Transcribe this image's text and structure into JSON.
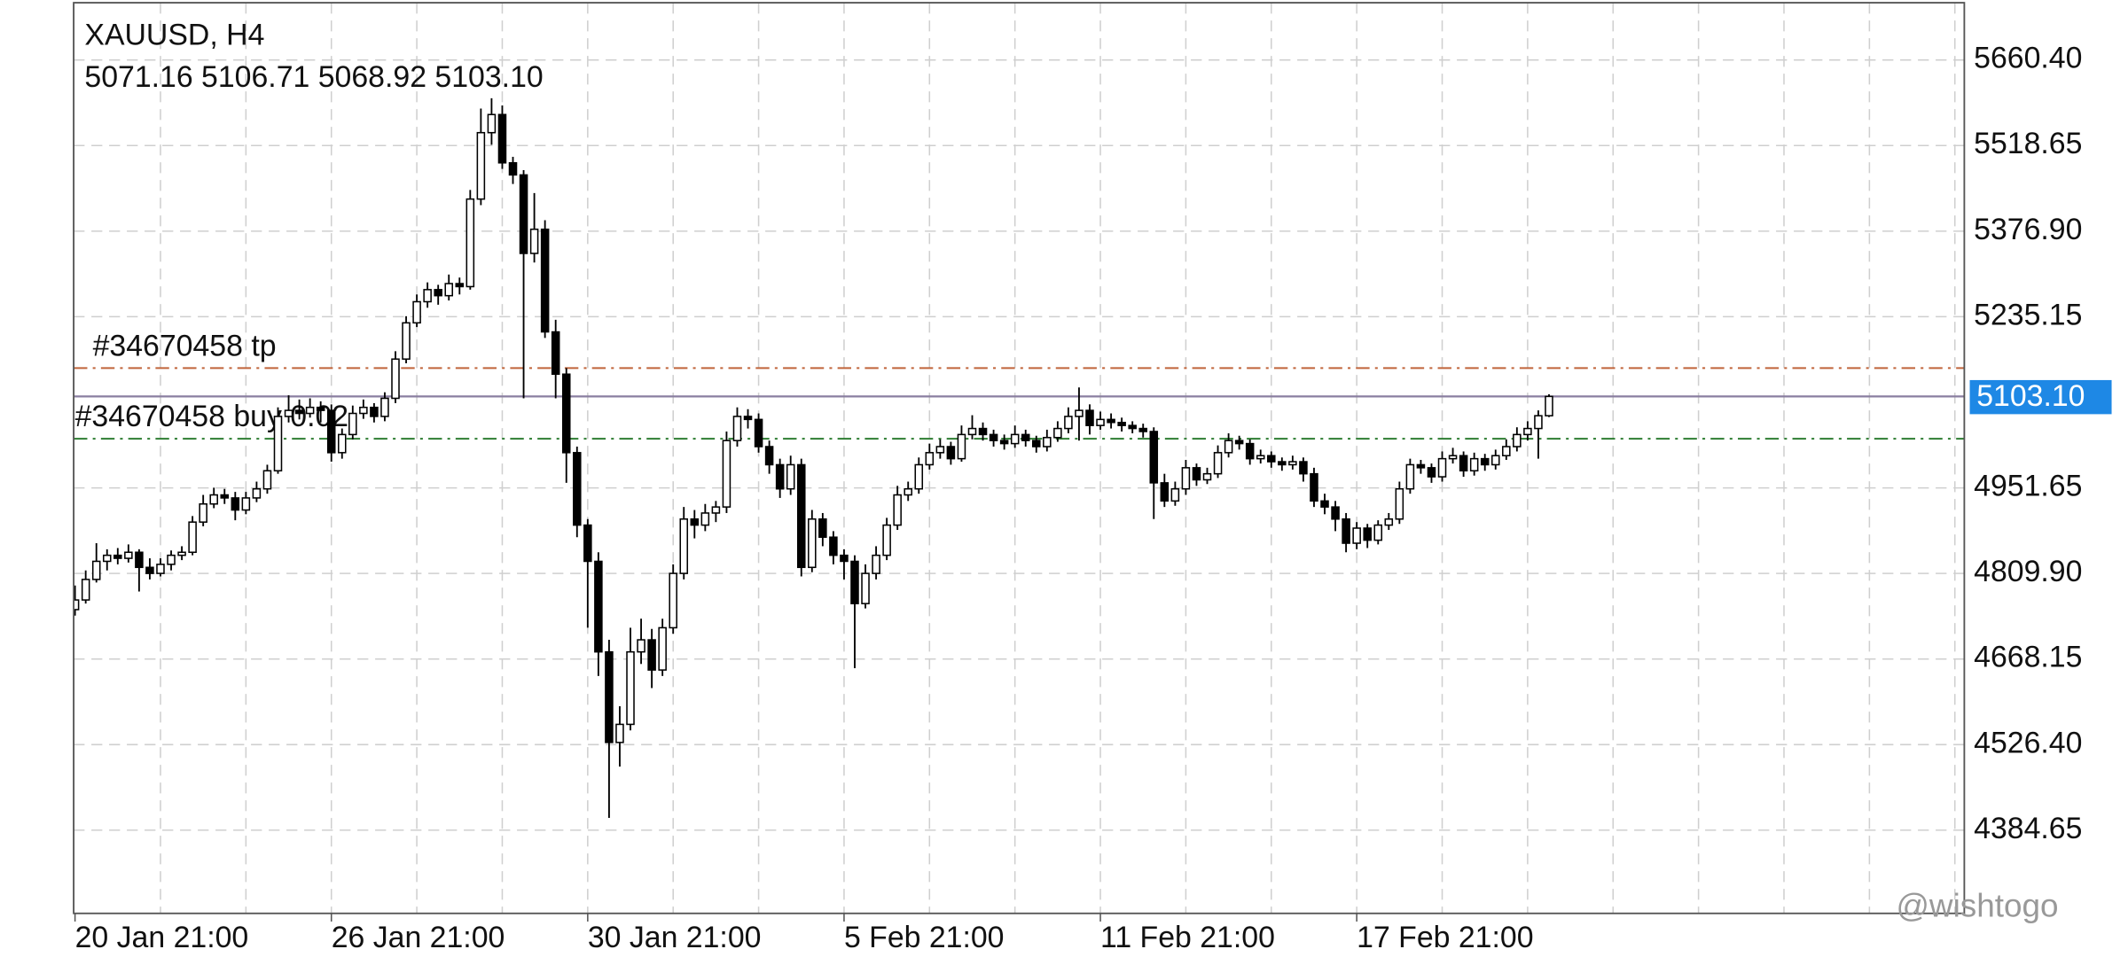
{
  "chart_data": {
    "type": "candlestick",
    "title": "XAUUSD, H4",
    "ohlc_label": "5071.16 5106.71 5068.92 5103.10",
    "watermark": "@wishtogo",
    "ylim": [
      4246.9,
      5755.2
    ],
    "yticks": [
      {
        "value": 5660.4,
        "label": "5660.40"
      },
      5518.65,
      {
        "value": 5376.9,
        "label": "5376.90"
      },
      5235.15,
      4951.65,
      {
        "value": 4809.9,
        "label": "4809.90"
      },
      4668.15,
      {
        "value": 4526.4,
        "label": "4526.40"
      },
      4384.65
    ],
    "grid": true,
    "bull_color": "#ffffff",
    "bear_color": "#000000",
    "outline_color": "#000000",
    "last_price": {
      "value": 5103.1,
      "label": "5103.10",
      "color": "#1e88e5"
    },
    "levels": [
      {
        "label": "#34670458 tp",
        "value": 5150,
        "color": "#c0643a"
      },
      {
        "label": "#34670458 buy 0.02",
        "value": 5033,
        "color": "#2e7d32"
      }
    ],
    "categories": [
      "20 Jan 21:00",
      null,
      null,
      null,
      null,
      null,
      null,
      null,
      null,
      null,
      null,
      null,
      null,
      null,
      null,
      null,
      null,
      null,
      null,
      null,
      null,
      null,
      null,
      null,
      "26 Jan 21:00",
      null,
      null,
      null,
      null,
      null,
      null,
      null,
      null,
      null,
      null,
      null,
      null,
      null,
      null,
      null,
      null,
      null,
      null,
      null,
      null,
      null,
      null,
      null,
      "30 Jan 21:00",
      null,
      null,
      null,
      null,
      null,
      null,
      null,
      null,
      null,
      null,
      null,
      null,
      null,
      null,
      null,
      null,
      null,
      null,
      null,
      null,
      null,
      null,
      null,
      "5 Feb 21:00",
      null,
      null,
      null,
      null,
      null,
      null,
      null,
      null,
      null,
      null,
      null,
      null,
      null,
      null,
      null,
      null,
      null,
      null,
      null,
      null,
      null,
      null,
      null,
      "11 Feb 21:00",
      null,
      null,
      null,
      null,
      null,
      null,
      null,
      null,
      null,
      null,
      null,
      null,
      null,
      null,
      null,
      null,
      null,
      null,
      null,
      null,
      null,
      null,
      null,
      "17 Feb 21:00",
      null,
      null,
      null,
      null,
      null,
      null,
      null,
      null,
      null,
      null,
      null,
      null,
      null,
      null,
      null,
      null,
      null,
      null
    ],
    "candles": [
      [
        4750,
        4790,
        4740,
        4766
      ],
      [
        4766,
        4815,
        4760,
        4800
      ],
      [
        4800,
        4860,
        4795,
        4830
      ],
      [
        4830,
        4850,
        4815,
        4840
      ],
      [
        4840,
        4852,
        4825,
        4835
      ],
      [
        4835,
        4858,
        4828,
        4845
      ],
      [
        4845,
        4850,
        4780,
        4820
      ],
      [
        4820,
        4835,
        4800,
        4810
      ],
      [
        4810,
        4835,
        4805,
        4825
      ],
      [
        4825,
        4848,
        4815,
        4840
      ],
      [
        4840,
        4855,
        4832,
        4845
      ],
      [
        4845,
        4905,
        4840,
        4895
      ],
      [
        4895,
        4940,
        4888,
        4925
      ],
      [
        4925,
        4952,
        4918,
        4940
      ],
      [
        4940,
        4950,
        4925,
        4935
      ],
      [
        4935,
        4945,
        4898,
        4915
      ],
      [
        4915,
        4945,
        4908,
        4935
      ],
      [
        4935,
        4962,
        4928,
        4950
      ],
      [
        4950,
        4990,
        4942,
        4980
      ],
      [
        4980,
        5085,
        4975,
        5070
      ],
      [
        5070,
        5105,
        5060,
        5080
      ],
      [
        5080,
        5098,
        5065,
        5075
      ],
      [
        5075,
        5100,
        5068,
        5085
      ],
      [
        5085,
        5095,
        5060,
        5080
      ],
      [
        5080,
        5090,
        4995,
        5010
      ],
      [
        5010,
        5050,
        5000,
        5040
      ],
      [
        5040,
        5088,
        5032,
        5075
      ],
      [
        5075,
        5098,
        5066,
        5085
      ],
      [
        5085,
        5092,
        5060,
        5070
      ],
      [
        5070,
        5110,
        5062,
        5100
      ],
      [
        5100,
        5178,
        5092,
        5165
      ],
      [
        5165,
        5236,
        5158,
        5225
      ],
      [
        5225,
        5272,
        5218,
        5260
      ],
      [
        5260,
        5292,
        5250,
        5280
      ],
      [
        5280,
        5288,
        5255,
        5270
      ],
      [
        5270,
        5305,
        5262,
        5290
      ],
      [
        5290,
        5300,
        5272,
        5285
      ],
      [
        5285,
        5445,
        5280,
        5430
      ],
      [
        5430,
        5580,
        5420,
        5540
      ],
      [
        5540,
        5597,
        5520,
        5570
      ],
      [
        5570,
        5585,
        5480,
        5490
      ],
      [
        5490,
        5500,
        5455,
        5470
      ],
      [
        5470,
        5478,
        5100,
        5340
      ],
      [
        5340,
        5440,
        5325,
        5380
      ],
      [
        5380,
        5395,
        5200,
        5210
      ],
      [
        5210,
        5230,
        5100,
        5140
      ],
      [
        5140,
        5150,
        4960,
        5010
      ],
      [
        5010,
        5020,
        4870,
        4890
      ],
      [
        4890,
        4900,
        4720,
        4830
      ],
      [
        4830,
        4845,
        4640,
        4680
      ],
      [
        4680,
        4700,
        4405,
        4530
      ],
      [
        4530,
        4590,
        4490,
        4560
      ],
      [
        4560,
        4720,
        4550,
        4680
      ],
      [
        4680,
        4735,
        4660,
        4700
      ],
      [
        4700,
        4718,
        4620,
        4650
      ],
      [
        4650,
        4735,
        4640,
        4720
      ],
      [
        4720,
        4825,
        4710,
        4810
      ],
      [
        4810,
        4920,
        4800,
        4900
      ],
      [
        4900,
        4915,
        4868,
        4890
      ],
      [
        4890,
        4925,
        4880,
        4910
      ],
      [
        4910,
        4930,
        4895,
        4920
      ],
      [
        4920,
        5045,
        4910,
        5030
      ],
      [
        5030,
        5085,
        5020,
        5070
      ],
      [
        5070,
        5082,
        5050,
        5065
      ],
      [
        5065,
        5075,
        5010,
        5020
      ],
      [
        5020,
        5030,
        4975,
        4990
      ],
      [
        4990,
        5000,
        4935,
        4950
      ],
      [
        4950,
        5005,
        4940,
        4990
      ],
      [
        4990,
        5000,
        4805,
        4820
      ],
      [
        4820,
        4915,
        4812,
        4900
      ],
      [
        4900,
        4910,
        4855,
        4870
      ],
      [
        4870,
        4880,
        4825,
        4840
      ],
      [
        4840,
        4850,
        4800,
        4830
      ],
      [
        4830,
        4840,
        4653,
        4760
      ],
      [
        4760,
        4825,
        4752,
        4810
      ],
      [
        4810,
        4855,
        4800,
        4840
      ],
      [
        4840,
        4902,
        4832,
        4890
      ],
      [
        4890,
        4955,
        4882,
        4940
      ],
      [
        4940,
        4962,
        4930,
        4950
      ],
      [
        4950,
        5002,
        4942,
        4990
      ],
      [
        4990,
        5025,
        4982,
        5010
      ],
      [
        5010,
        5032,
        5000,
        5020
      ],
      [
        5020,
        5028,
        4990,
        5000
      ],
      [
        5000,
        5055,
        4995,
        5040
      ],
      [
        5040,
        5072,
        5032,
        5050
      ],
      [
        5050,
        5060,
        5030,
        5040
      ],
      [
        5040,
        5048,
        5020,
        5030
      ],
      [
        5030,
        5040,
        5015,
        5025
      ],
      [
        5025,
        5055,
        5018,
        5040
      ],
      [
        5040,
        5048,
        5020,
        5030
      ],
      [
        5030,
        5038,
        5010,
        5020
      ],
      [
        5020,
        5048,
        5012,
        5035
      ],
      [
        5035,
        5062,
        5028,
        5050
      ],
      [
        5050,
        5085,
        5042,
        5070
      ],
      [
        5070,
        5118,
        5030,
        5080
      ],
      [
        5080,
        5090,
        5040,
        5055
      ],
      [
        5055,
        5078,
        5048,
        5065
      ],
      [
        5065,
        5075,
        5050,
        5060
      ],
      [
        5060,
        5068,
        5045,
        5055
      ],
      [
        5055,
        5062,
        5042,
        5050
      ],
      [
        5050,
        5058,
        5035,
        5045
      ],
      [
        5045,
        5052,
        4900,
        4960
      ],
      [
        4960,
        4975,
        4920,
        4930
      ],
      [
        4930,
        4962,
        4922,
        4950
      ],
      [
        4950,
        4998,
        4940,
        4985
      ],
      [
        4985,
        4992,
        4955,
        4965
      ],
      [
        4965,
        4985,
        4958,
        4975
      ],
      [
        4975,
        5022,
        4968,
        5010
      ],
      [
        5010,
        5042,
        5002,
        5030
      ],
      [
        5030,
        5038,
        5015,
        5025
      ],
      [
        5025,
        5032,
        4990,
        5000
      ],
      [
        5000,
        5015,
        4992,
        5005
      ],
      [
        5005,
        5012,
        4985,
        4995
      ],
      [
        4995,
        5002,
        4980,
        4990
      ],
      [
        4990,
        5005,
        4982,
        4995
      ],
      [
        4995,
        5002,
        4962,
        4975
      ],
      [
        4975,
        4985,
        4920,
        4930
      ],
      [
        4930,
        4942,
        4908,
        4920
      ],
      [
        4920,
        4930,
        4880,
        4900
      ],
      [
        4900,
        4910,
        4845,
        4860
      ],
      [
        4860,
        4895,
        4850,
        4885
      ],
      [
        4885,
        4892,
        4852,
        4865
      ],
      [
        4865,
        4898,
        4858,
        4890
      ],
      [
        4890,
        4910,
        4882,
        4900
      ],
      [
        4900,
        4962,
        4892,
        4950
      ],
      [
        4950,
        5000,
        4942,
        4990
      ],
      [
        4990,
        4998,
        4975,
        4985
      ],
      [
        4985,
        4992,
        4960,
        4970
      ],
      [
        4970,
        5012,
        4962,
        5000
      ],
      [
        5000,
        5018,
        4992,
        5005
      ],
      [
        5005,
        5012,
        4970,
        4980
      ],
      [
        4980,
        5010,
        4972,
        5000
      ],
      [
        5000,
        5008,
        4980,
        4990
      ],
      [
        4990,
        5015,
        4982,
        5005
      ],
      [
        5005,
        5032,
        4998,
        5020
      ],
      [
        5020,
        5052,
        5012,
        5040
      ],
      [
        5040,
        5062,
        5030,
        5050
      ],
      [
        5050,
        5080,
        5000,
        5071.16
      ],
      [
        5071.16,
        5106.71,
        5068.92,
        5103.1
      ]
    ]
  }
}
